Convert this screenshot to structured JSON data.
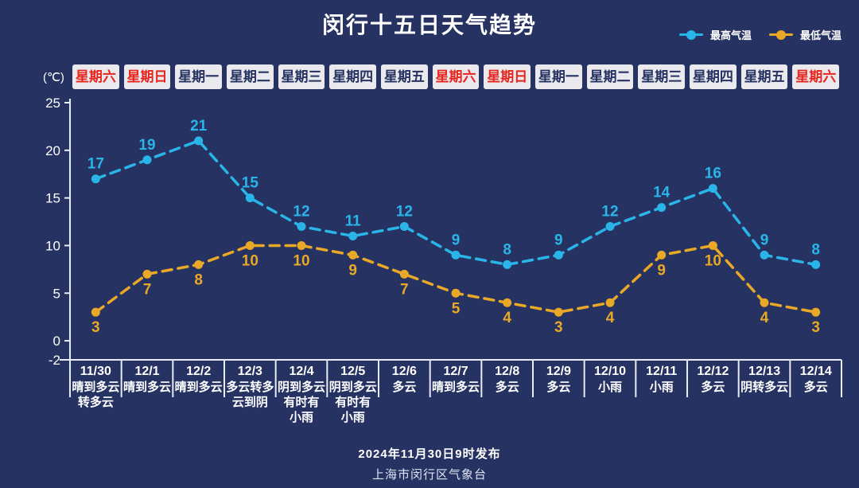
{
  "title": "闵行十五日天气趋势",
  "unit_label": "(℃)",
  "legend": {
    "high_label": "最高气温",
    "low_label": "最低气温"
  },
  "footer": {
    "published": "2024年11月30日9时发布",
    "agency": "上海市闵行区气象台"
  },
  "colors": {
    "background": "#263262",
    "high_series": "#2ab5e9",
    "low_series": "#e9a826",
    "axis": "#e8ecf6",
    "text": "#ffffff",
    "weekday_box_bg": "#eae9ee",
    "weekday_text": "#263262",
    "weekend_text": "#e8261d"
  },
  "chart_data": {
    "type": "line",
    "title": "闵行十五日天气趋势",
    "ylabel": "(℃)",
    "ylim": [
      -2,
      25
    ],
    "yticks": [
      25,
      20,
      15,
      10,
      5,
      0,
      -2
    ],
    "grid": false,
    "legend_position": "top-right",
    "line_style": "dashed-with-markers",
    "categories": [
      "11/30",
      "12/1",
      "12/2",
      "12/3",
      "12/4",
      "12/5",
      "12/6",
      "12/7",
      "12/8",
      "12/9",
      "12/10",
      "12/11",
      "12/12",
      "12/13",
      "12/14"
    ],
    "weekdays": [
      "星期六",
      "星期日",
      "星期一",
      "星期二",
      "星期三",
      "星期四",
      "星期五",
      "星期六",
      "星期日",
      "星期一",
      "星期二",
      "星期三",
      "星期四",
      "星期五",
      "星期六"
    ],
    "weekend_flags": [
      true,
      true,
      false,
      false,
      false,
      false,
      false,
      true,
      true,
      false,
      false,
      false,
      false,
      false,
      true
    ],
    "weather": [
      "晴到多云\n转多云",
      "晴到多云",
      "晴到多云",
      "多云转多\n云到阴",
      "阴到多云\n有时有\n小雨",
      "阴到多云\n有时有\n小雨",
      "多云",
      "晴到多云",
      "多云",
      "多云",
      "小雨",
      "小雨",
      "多云",
      "阴转多云",
      "多云"
    ],
    "series": [
      {
        "name": "最高气温",
        "color": "#2ab5e9",
        "values": [
          17,
          19,
          21,
          15,
          12,
          11,
          12,
          9,
          8,
          9,
          12,
          14,
          16,
          9,
          8
        ]
      },
      {
        "name": "最低气温",
        "color": "#e9a826",
        "values": [
          3,
          7,
          8,
          10,
          10,
          9,
          7,
          5,
          4,
          3,
          4,
          9,
          10,
          4,
          3
        ]
      }
    ]
  }
}
